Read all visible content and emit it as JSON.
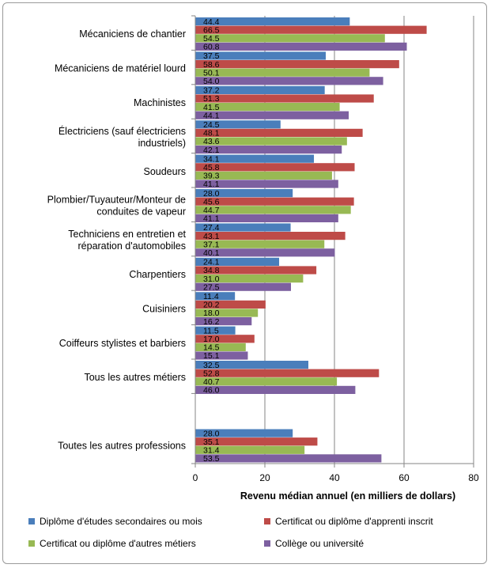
{
  "chart_data": {
    "type": "bar",
    "orientation": "horizontal",
    "title": "",
    "xlabel": "Revenu médian annuel (en milliers de dollars)",
    "ylabel": "",
    "xlim": [
      0,
      80
    ],
    "xticks": [
      0,
      20,
      40,
      60,
      80
    ],
    "grid": true,
    "legend_position": "bottom",
    "colors": [
      "#4a7ebb",
      "#be4b48",
      "#98b954",
      "#7d60a0"
    ],
    "categories": [
      [
        "Mécaniciens de chantier"
      ],
      [
        "Mécaniciens de matériel lourd"
      ],
      [
        "Machinistes"
      ],
      [
        "Électriciens (sauf électriciens",
        "industriels)"
      ],
      [
        "Soudeurs"
      ],
      [
        "Plombier/Tuyauteur/Monteur de",
        "conduites de vapeur"
      ],
      [
        "Techniciens en entretien et",
        "réparation d'automobiles"
      ],
      [
        "Charpentiers"
      ],
      [
        "Cuisiniers"
      ],
      [
        "Coiffeurs stylistes et barbiers"
      ],
      [
        "Tous les autres métiers"
      ],
      [
        "Toutes les autres professions"
      ]
    ],
    "series": [
      {
        "name": "Diplôme d'études secondaires ou mois",
        "values": [
          44.4,
          37.5,
          37.2,
          24.5,
          34.1,
          28.0,
          27.4,
          24.1,
          11.4,
          11.5,
          32.5,
          28.0
        ]
      },
      {
        "name": "Certificat ou diplôme d'apprenti inscrit",
        "values": [
          66.5,
          58.6,
          51.3,
          48.1,
          45.8,
          45.6,
          43.1,
          34.8,
          20.2,
          17.0,
          52.8,
          35.1
        ]
      },
      {
        "name": "Certificat ou diplôme d'autres métiers",
        "values": [
          54.5,
          50.1,
          41.5,
          43.6,
          39.3,
          44.7,
          37.1,
          31.0,
          18.0,
          14.5,
          40.7,
          31.4
        ]
      },
      {
        "name": "Collège ou université",
        "values": [
          60.8,
          54.0,
          44.1,
          42.1,
          41.1,
          41.1,
          40.1,
          27.5,
          16.2,
          15.1,
          46.0,
          53.5
        ]
      }
    ]
  }
}
